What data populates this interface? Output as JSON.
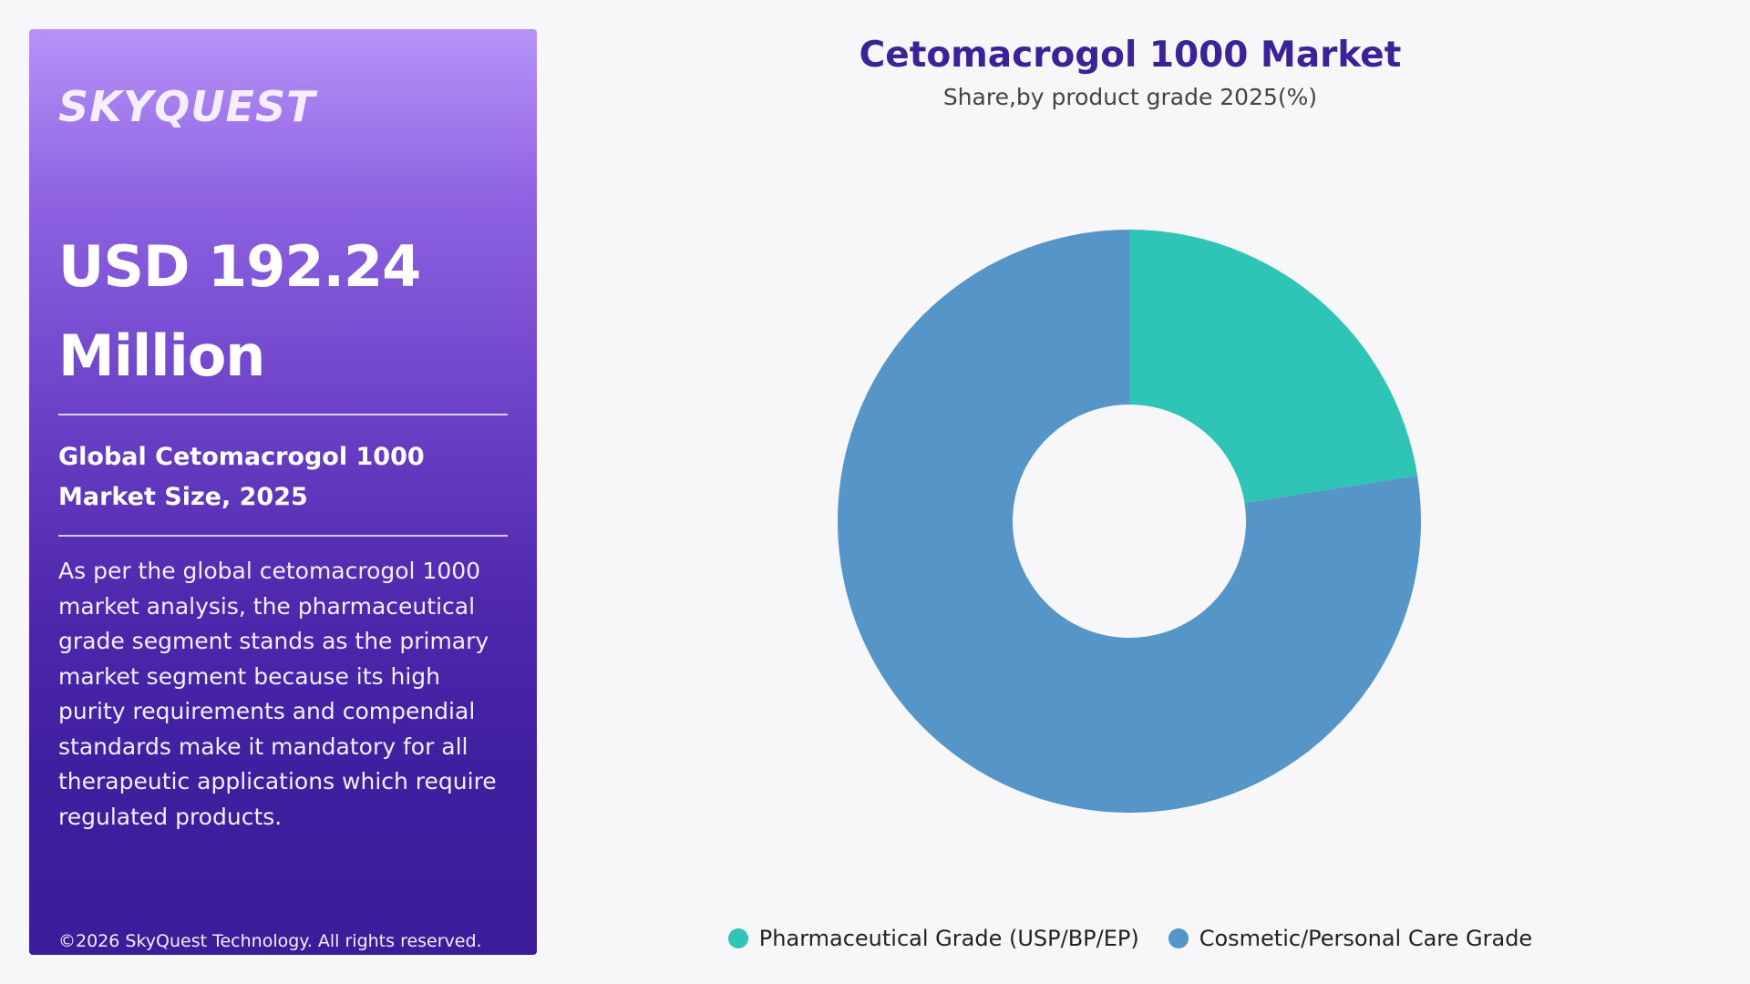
{
  "panel": {
    "logo": "SKYQUEST",
    "headline": "USD 192.24 Million",
    "subheadline": "Global Cetomacrogol 1000 Market Size, 2025",
    "description": "As per the global cetomacrogol 1000 market analysis, the pharmaceutical grade segment stands as the primary market segment because its high purity requirements and compendial standards make it mandatory for all therapeutic applications which require regulated products.",
    "copyright": "©2026 SkyQuest Technology. All rights reserved."
  },
  "chart_data": {
    "type": "pie",
    "title": "Cetomacrogol 1000 Market",
    "subtitle": "Share,by product grade 2025(%)",
    "categories": [
      "Pharmaceutical Grade (USP/BP/EP)",
      "Cosmetic/Personal Care Grade"
    ],
    "values": [
      22.5,
      77.5
    ],
    "colors": [
      "#2ec4b6",
      "#5595c8"
    ],
    "donut": true,
    "legend_position": "bottom-center"
  }
}
